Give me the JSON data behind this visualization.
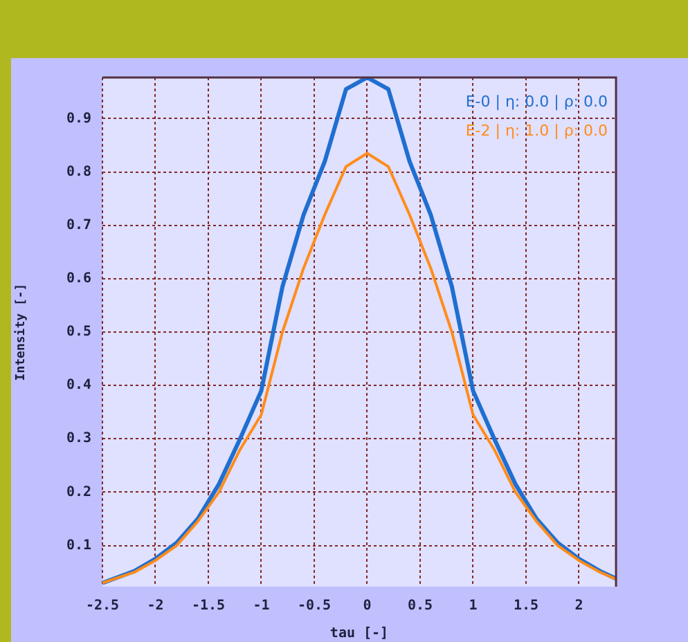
{
  "chart_data": {
    "type": "line",
    "xlabel": "tau [-]",
    "ylabel": "Intensity [-]",
    "x": [
      -2.5,
      -2.2,
      -2.0,
      -1.8,
      -1.6,
      -1.4,
      -1.2,
      -1.0,
      -0.8,
      -0.6,
      -0.4,
      -0.2,
      0,
      0.2,
      0.4,
      0.6,
      0.8,
      1.0,
      1.2,
      1.4,
      1.6,
      1.8,
      2.0,
      2.2,
      2.35
    ],
    "series": [
      {
        "name": "E-0 | η: 0.0 | ρ: 0.0",
        "color": "#1f6fd0",
        "values": [
          0.03,
          0.052,
          0.075,
          0.105,
          0.15,
          0.215,
          0.3,
          0.39,
          0.585,
          0.72,
          0.82,
          0.955,
          0.977,
          0.955,
          0.82,
          0.72,
          0.585,
          0.39,
          0.3,
          0.215,
          0.15,
          0.105,
          0.075,
          0.052,
          0.038
        ]
      },
      {
        "name": "E-2 | η: 1.0 | ρ: 0.0",
        "color": "#ff8c1a",
        "values": [
          0.03,
          0.05,
          0.072,
          0.1,
          0.145,
          0.2,
          0.28,
          0.345,
          0.5,
          0.62,
          0.72,
          0.81,
          0.835,
          0.81,
          0.72,
          0.62,
          0.5,
          0.345,
          0.28,
          0.2,
          0.145,
          0.1,
          0.072,
          0.05,
          0.037
        ]
      }
    ],
    "xlim": [
      -2.5,
      2.35
    ],
    "xticks": [
      -2.5,
      -2,
      -1.5,
      -1,
      -0.5,
      0,
      0.5,
      1,
      1.5,
      2
    ],
    "ylim": [
      0.023,
      0.977
    ],
    "yticks": [
      0.1,
      0.2,
      0.3,
      0.4,
      0.5,
      0.6,
      0.7,
      0.8,
      0.9
    ],
    "grid": true,
    "legend": "top right",
    "marker": "none",
    "line_style": "solid"
  }
}
